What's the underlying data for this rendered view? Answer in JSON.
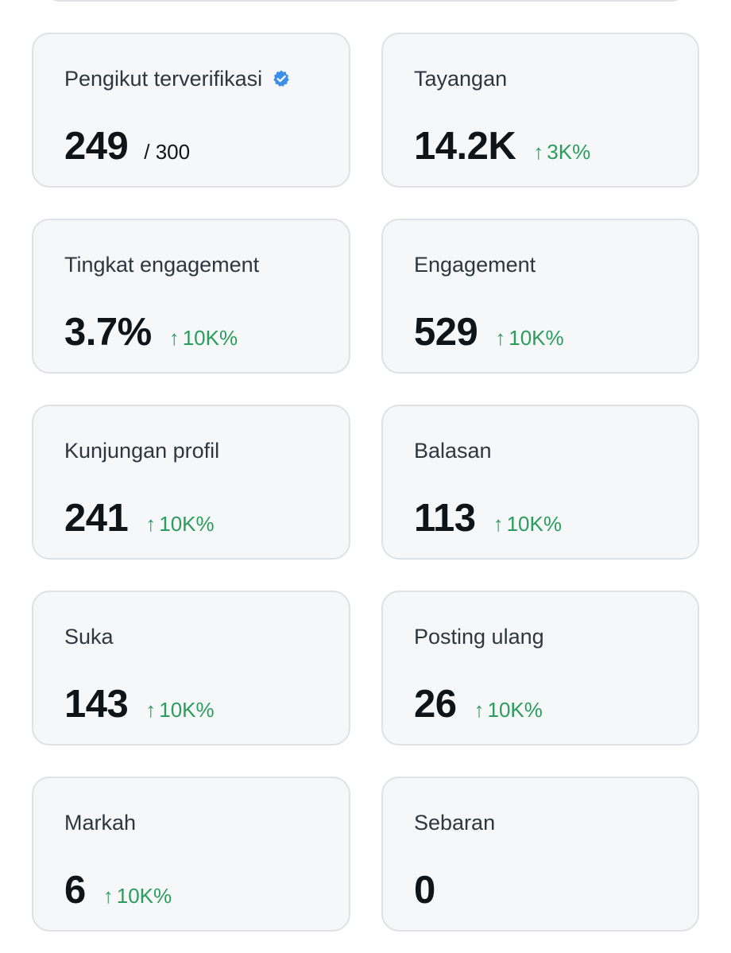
{
  "cards": [
    {
      "label": "Pengikut terverifikasi",
      "value": "249",
      "max": "/ 300",
      "change": "",
      "verified_icon": "verified-badge-icon"
    },
    {
      "label": "Tayangan",
      "value": "14.2K",
      "change": "3K%"
    },
    {
      "label": "Tingkat engagement",
      "value": "3.7%",
      "change": "10K%"
    },
    {
      "label": "Engagement",
      "value": "529",
      "change": "10K%"
    },
    {
      "label": "Kunjungan profil",
      "value": "241",
      "change": "10K%"
    },
    {
      "label": "Balasan",
      "value": "113",
      "change": "10K%"
    },
    {
      "label": "Suka",
      "value": "143",
      "change": "10K%"
    },
    {
      "label": "Posting ulang",
      "value": "26",
      "change": "10K%"
    },
    {
      "label": "Markah",
      "value": "6",
      "change": "10K%"
    },
    {
      "label": "Sebaran",
      "value": "0",
      "change": ""
    }
  ],
  "icons": {
    "up_arrow": "↑",
    "change_arrow_icon": "arrow-up-icon"
  },
  "colors": {
    "positive_change": "#2a9d5c",
    "verified_badge": "#3b8fe6",
    "card_background": "#f5f7f8",
    "card_border": "#dde2e6"
  }
}
